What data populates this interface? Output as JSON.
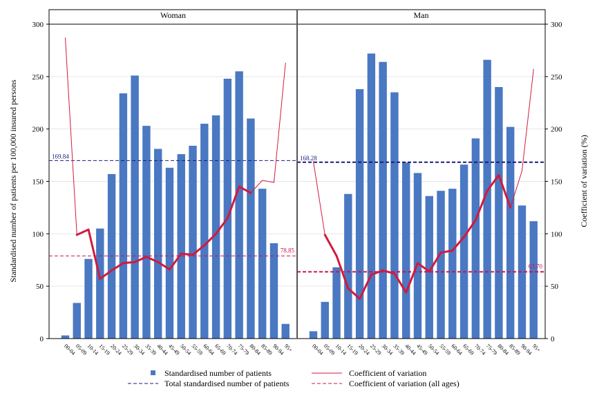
{
  "chart_data": {
    "type": "bar",
    "title": "",
    "ylabel": "Standardised number of patients per 100,000 insured persons",
    "y2label": "Coefficient of variation (%)",
    "ylim": [
      0,
      300
    ],
    "y2lim": [
      0,
      300
    ],
    "yticks": [
      "0",
      "50",
      "100",
      "150",
      "200",
      "250",
      "300"
    ],
    "categories": [
      "00-04",
      "05-09",
      "10-14",
      "15-19",
      "20-24",
      "25-29",
      "30-34",
      "35-39",
      "40-44",
      "45-49",
      "50-54",
      "55-59",
      "60-64",
      "65-69",
      "70-74",
      "75-79",
      "80-84",
      "85-89",
      "90-94",
      "95+"
    ],
    "grid": true,
    "legend_placement": "bottom",
    "legend": {
      "bars": "Standardised number of patients",
      "cv": "Coefficient of variation",
      "total": "Total standardised number of patients",
      "cv_all": "Coefficient of variation (all ages)"
    },
    "colors": {
      "bar": "#4a78c2",
      "cv": "#d11a3d",
      "total": "#1a1a7a",
      "cv_all": "#c4174d",
      "frame": "#000000",
      "grid": "#e6e6e6"
    },
    "panels": [
      {
        "name": "Woman",
        "values": [
          3,
          34,
          76,
          105,
          157,
          234,
          251,
          203,
          181,
          163,
          176,
          184,
          205,
          213,
          248,
          255,
          210,
          143,
          91,
          14
        ],
        "cv": [
          287,
          99,
          104,
          57,
          65,
          72,
          73,
          78,
          73,
          66,
          81,
          80,
          89,
          100,
          115,
          145,
          139,
          151,
          149,
          263
        ],
        "cv_reliable": [
          false,
          true,
          true,
          true,
          true,
          true,
          true,
          true,
          true,
          true,
          true,
          true,
          true,
          true,
          true,
          true,
          true,
          false,
          false,
          false
        ],
        "total": 169.84,
        "total_label": "169.84",
        "cv_all": 78.85,
        "cv_all_label": "78.85"
      },
      {
        "name": "Man",
        "values": [
          7,
          35,
          68,
          138,
          238,
          272,
          264,
          235,
          168,
          158,
          136,
          141,
          143,
          166,
          191,
          266,
          240,
          202,
          127,
          112
        ],
        "cv": [
          169,
          99,
          79,
          48,
          38,
          61,
          65,
          62,
          44,
          72,
          64,
          82,
          84,
          97,
          113,
          141,
          156,
          125,
          160,
          257
        ],
        "cv_reliable": [
          false,
          true,
          true,
          true,
          true,
          true,
          true,
          true,
          true,
          true,
          true,
          true,
          true,
          true,
          true,
          true,
          true,
          true,
          false,
          false
        ],
        "total": 168.28,
        "total_label": "168.28",
        "cv_all": 63.7,
        "cv_all_label": "63.70"
      }
    ]
  }
}
